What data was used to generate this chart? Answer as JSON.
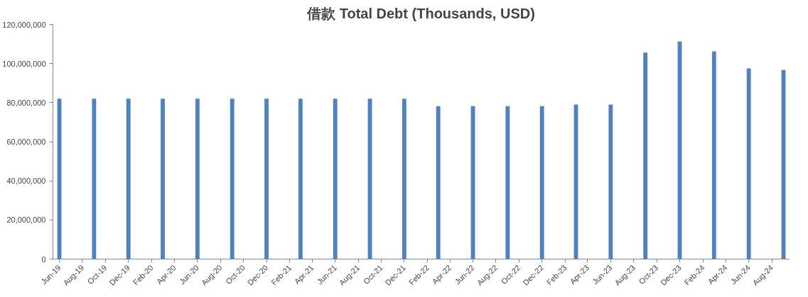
{
  "chart_data": {
    "type": "bar",
    "title": "借款 Total Debt (Thousands, USD)",
    "x": [
      "2019-06",
      "2019-09",
      "2019-12",
      "2020-03",
      "2020-06",
      "2020-09",
      "2020-12",
      "2021-03",
      "2021-06",
      "2021-09",
      "2021-12",
      "2022-03",
      "2022-06",
      "2022-09",
      "2022-12",
      "2023-03",
      "2023-06",
      "2023-09",
      "2023-12",
      "2024-03",
      "2024-06",
      "2024-09"
    ],
    "series": [
      {
        "color": "#4f81bd",
        "values": [
          82000000,
          82000000,
          82000000,
          82000000,
          82000000,
          82000000,
          82000000,
          82000000,
          82000000,
          82000000,
          82000000,
          78200000,
          78200000,
          78200000,
          78200000,
          79000000,
          79000000,
          105600000,
          111300000,
          106200000,
          97500000,
          96700000
        ]
      }
    ],
    "xlim": [
      "2019-05-15",
      "2024-09-16"
    ],
    "xticks": [
      {
        "value": "2019-06",
        "label": "Jun-19"
      },
      {
        "value": "2019-08",
        "label": "Aug-19"
      },
      {
        "value": "2019-10",
        "label": "Oct-19"
      },
      {
        "value": "2019-12",
        "label": "Dec-19"
      },
      {
        "value": "2020-02",
        "label": "Feb-20"
      },
      {
        "value": "2020-04",
        "label": "Apr-20"
      },
      {
        "value": "2020-06",
        "label": "Jun-20"
      },
      {
        "value": "2020-08",
        "label": "Aug-20"
      },
      {
        "value": "2020-10",
        "label": "Oct-20"
      },
      {
        "value": "2020-12",
        "label": "Dec-20"
      },
      {
        "value": "2021-02",
        "label": "Feb-21"
      },
      {
        "value": "2021-04",
        "label": "Apr-21"
      },
      {
        "value": "2021-06",
        "label": "Jun-21"
      },
      {
        "value": "2021-08",
        "label": "Aug-21"
      },
      {
        "value": "2021-10",
        "label": "Oct-21"
      },
      {
        "value": "2021-12",
        "label": "Dec-21"
      },
      {
        "value": "2022-02",
        "label": "Feb-22"
      },
      {
        "value": "2022-04",
        "label": "Apr-22"
      },
      {
        "value": "2022-06",
        "label": "Jun-22"
      },
      {
        "value": "2022-08",
        "label": "Aug-22"
      },
      {
        "value": "2022-10",
        "label": "Oct-22"
      },
      {
        "value": "2022-12",
        "label": "Dec-22"
      },
      {
        "value": "2023-02",
        "label": "Feb-23"
      },
      {
        "value": "2023-04",
        "label": "Apr-23"
      },
      {
        "value": "2023-06",
        "label": "Jun-23"
      },
      {
        "value": "2023-08",
        "label": "Aug-23"
      },
      {
        "value": "2023-10",
        "label": "Oct-23"
      },
      {
        "value": "2023-12",
        "label": "Dec-23"
      },
      {
        "value": "2024-02",
        "label": "Feb-24"
      },
      {
        "value": "2024-04",
        "label": "Apr-24"
      },
      {
        "value": "2024-06",
        "label": "Jun-24"
      },
      {
        "value": "2024-08",
        "label": "Aug-24"
      }
    ],
    "ylim": [
      0,
      120000000
    ],
    "yticks": [
      0,
      {
        "value": 20000000,
        "label": "20,000,000"
      },
      {
        "value": 40000000,
        "label": "40,000,000"
      },
      {
        "value": 60000000,
        "label": "60,000,000"
      },
      {
        "value": 80000000,
        "label": "80,000,000"
      },
      {
        "value": 100000000,
        "label": "100,000,000"
      },
      {
        "value": 120000000,
        "label": "120,000,000"
      }
    ]
  }
}
